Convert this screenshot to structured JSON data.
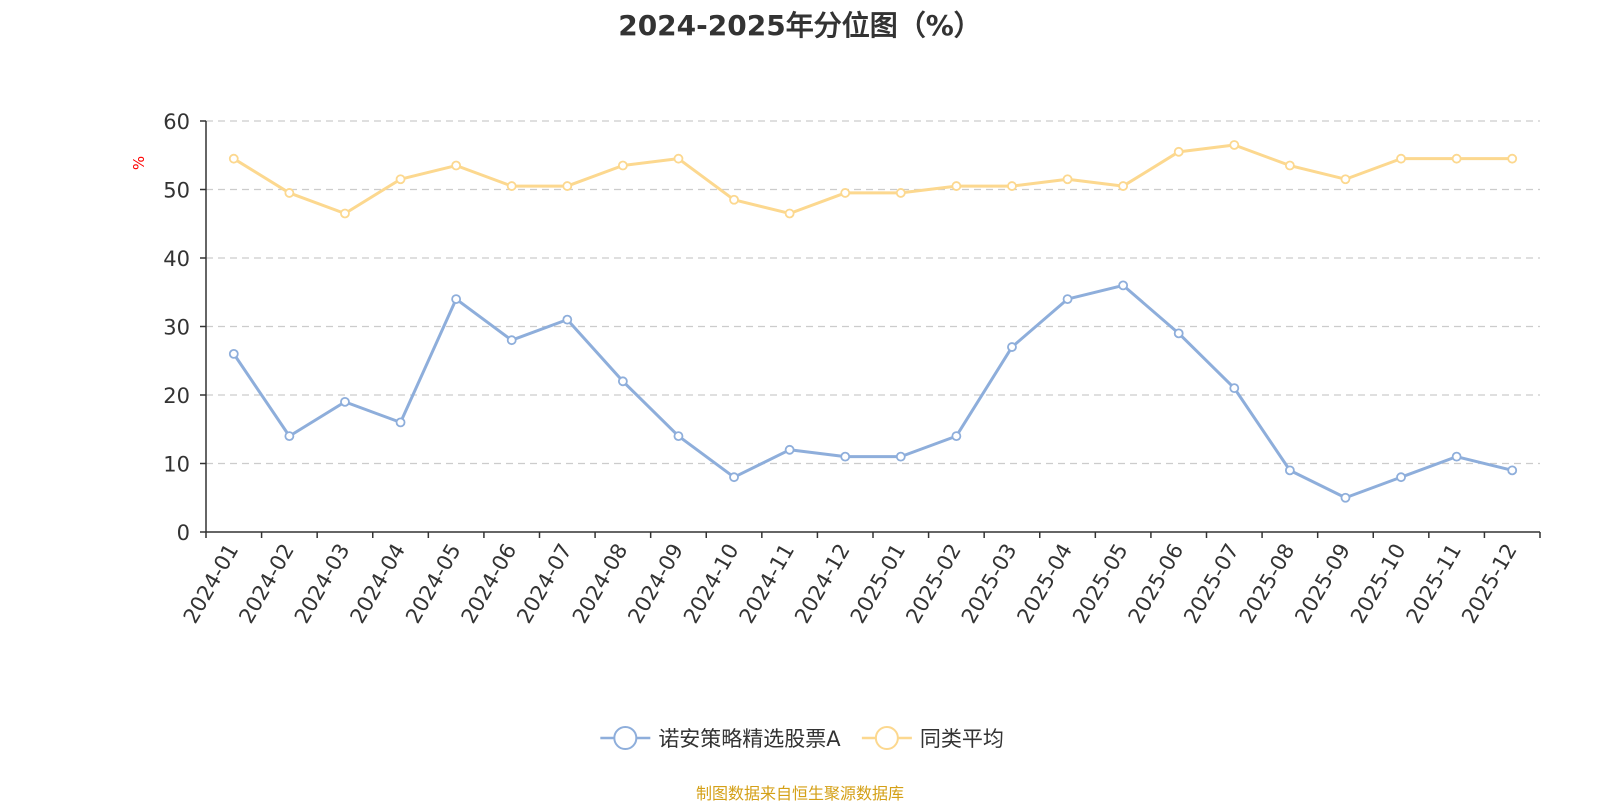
{
  "chart_data": {
    "type": "line",
    "title": "2024-2025年分位图（%）",
    "ylabel": "%",
    "xlabel": "",
    "ylim": [
      0,
      60
    ],
    "yticks": [
      0,
      10,
      20,
      30,
      40,
      50,
      60
    ],
    "grid": true,
    "legend_position": "bottom-center",
    "categories": [
      "2024-01",
      "2024-02",
      "2024-03",
      "2024-04",
      "2024-05",
      "2024-06",
      "2024-07",
      "2024-08",
      "2024-09",
      "2024-10",
      "2024-11",
      "2024-12",
      "2025-01",
      "2025-02",
      "2025-03",
      "2025-04",
      "2025-05",
      "2025-06",
      "2025-07",
      "2025-08",
      "2025-09",
      "2025-10",
      "2025-11",
      "2025-12"
    ],
    "series": [
      {
        "name": "诺安策略精选股票A",
        "color": "#8eaedb",
        "values": [
          26,
          14,
          19,
          16,
          34,
          28,
          31,
          22,
          14,
          8,
          12,
          11,
          11,
          14,
          27,
          34,
          36,
          29,
          21,
          9,
          5,
          8,
          11,
          9
        ]
      },
      {
        "name": "同类平均",
        "color": "#fcd88f",
        "values": [
          54.5,
          49.5,
          46.5,
          51.5,
          53.5,
          50.5,
          50.5,
          53.5,
          54.5,
          48.5,
          46.5,
          49.5,
          49.5,
          50.5,
          50.5,
          51.5,
          50.5,
          55.5,
          56.5,
          53.5,
          51.5,
          54.5,
          54.5,
          54.5
        ]
      }
    ]
  },
  "source_note": "制图数据来自恒生聚源数据库",
  "colors": {
    "axis": "#333333",
    "grid": "#cccccc",
    "ylabel": "#ff0000",
    "source": "#d4a017"
  }
}
